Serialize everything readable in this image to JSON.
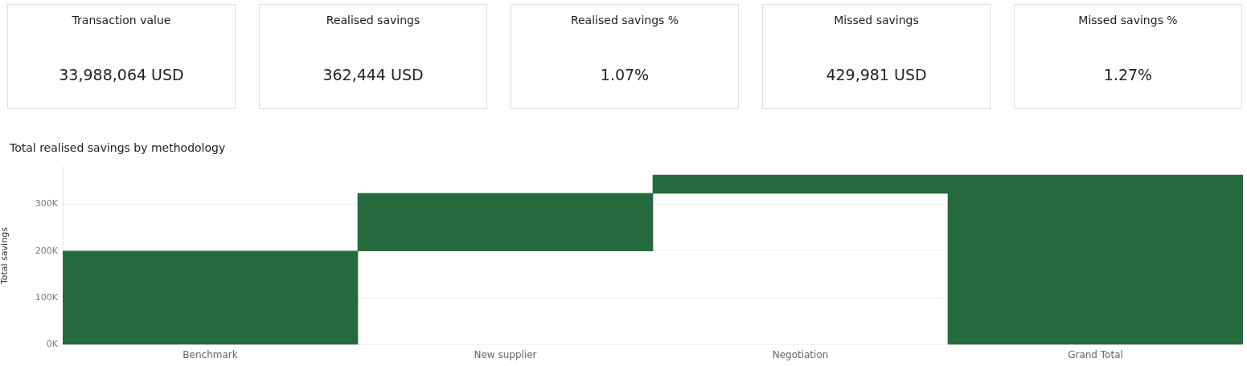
{
  "chart_data": [
    {
      "type": "other",
      "title": "Transaction value",
      "annotations": [
        "33,988,064 USD"
      ]
    },
    {
      "type": "other",
      "title": "Realised savings",
      "annotations": [
        "362,444 USD"
      ]
    },
    {
      "type": "other",
      "title": "Realised savings %",
      "annotations": [
        "1.07%"
      ]
    },
    {
      "type": "other",
      "title": "Missed savings",
      "annotations": [
        "429,981 USD"
      ]
    },
    {
      "type": "other",
      "title": "Missed savings %",
      "annotations": [
        "1.27%"
      ]
    },
    {
      "type": "bar",
      "title": "Total realised savings by methodology",
      "ylabel": "Total savings",
      "categories": [
        "Benchmark",
        "New supplier",
        "Negotiation",
        "Grand Total"
      ],
      "values": [
        200000,
        123000,
        39000,
        362000
      ],
      "base": [
        0,
        200000,
        323000,
        0
      ],
      "color": "#276a3e",
      "ylim": [
        0,
        380000
      ],
      "yticks": [
        {
          "value": 0,
          "label": "0K"
        },
        {
          "value": 100000,
          "label": "100K"
        },
        {
          "value": 200000,
          "label": "200K"
        },
        {
          "value": 300000,
          "label": "300K"
        }
      ],
      "grid": "y",
      "legend": false
    }
  ]
}
